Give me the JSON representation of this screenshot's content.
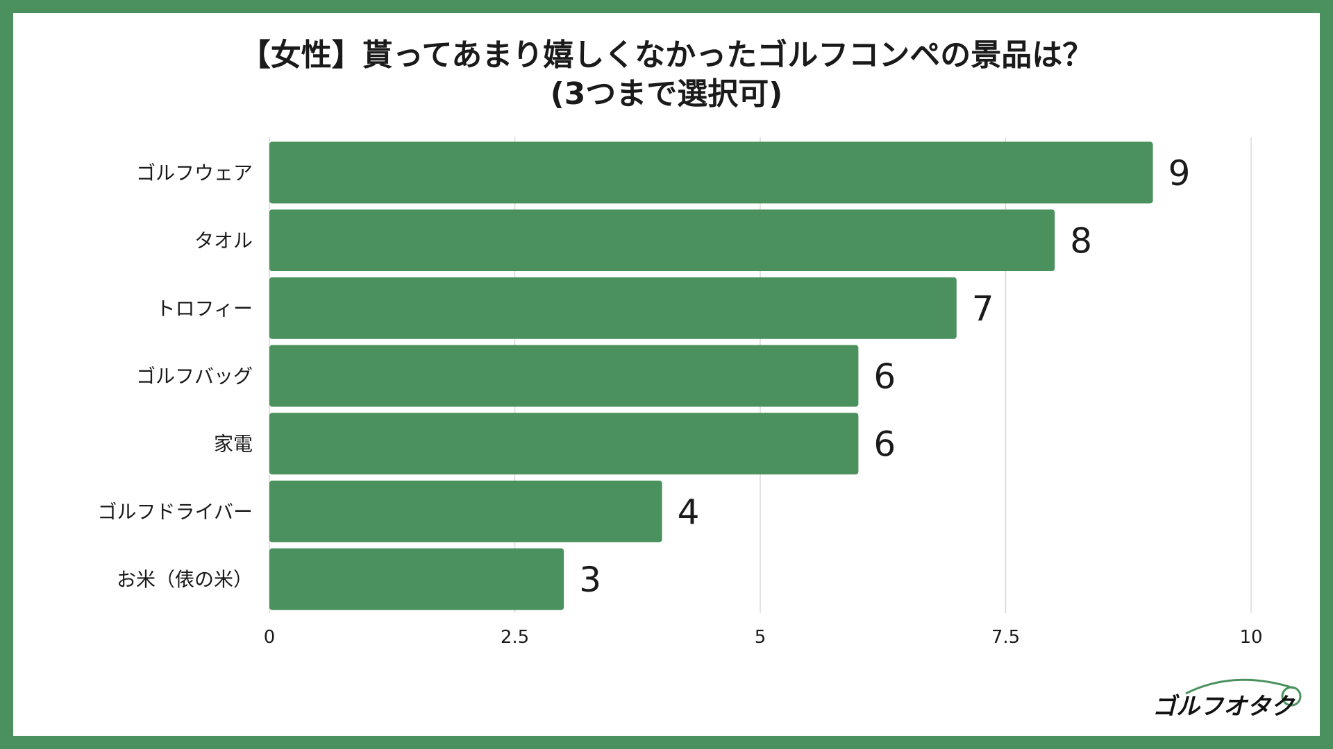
{
  "chart_data": {
    "type": "bar",
    "orientation": "horizontal",
    "title": "【女性】貰ってあまり嬉しくなかったゴルフコンペの景品は？",
    "subtitle": "(3つまで選択可)",
    "categories": [
      "ゴルフウェア",
      "タオル",
      "トロフィー",
      "ゴルフバッグ",
      "家電",
      "ゴルフドライバー",
      "お米（俵の米）"
    ],
    "values": [
      9,
      8,
      7,
      6,
      6,
      4,
      3
    ],
    "value_labels": [
      "9",
      "8",
      "7",
      "6",
      "6",
      "4",
      "3"
    ],
    "xlim": [
      0,
      10
    ],
    "x_ticks": [
      0,
      2.5,
      5,
      7.5,
      10
    ],
    "x_tick_labels": [
      "0",
      "2.5",
      "5",
      "7.5",
      "10"
    ],
    "grid": "vertical",
    "legend": "none",
    "bar_color": "#4a915d"
  },
  "colors": {
    "background_border": "#4a915d",
    "panel": "#ffffff",
    "grid": "#d9d9d9",
    "text": "#1a1a1a"
  },
  "logo": {
    "text": "ゴルフオタク",
    "icon": "golf-otaku-logo"
  }
}
